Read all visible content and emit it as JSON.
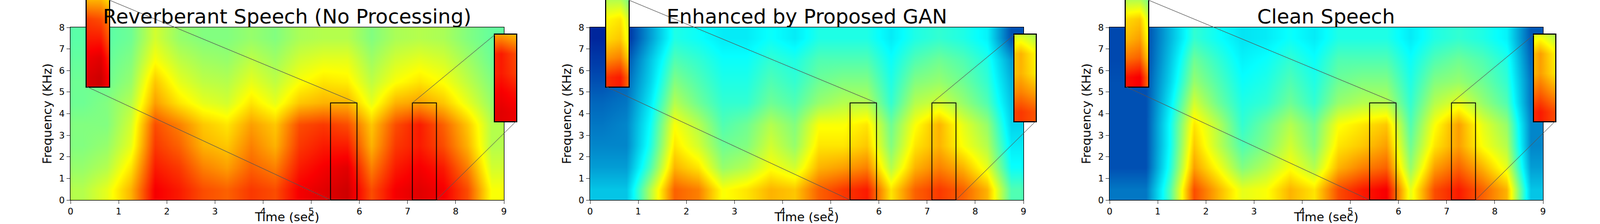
{
  "chart_data": [
    {
      "type": "heatmap",
      "title": "Reverberant Speech (No Processing)",
      "x_label": "Time (sec)",
      "y_label": "Frequency (KHz)",
      "color": "jet",
      "zlim": [
        0,
        1
      ],
      "x": [
        0.25,
        0.75,
        1.25,
        1.75,
        2.25,
        2.75,
        3.25,
        3.75,
        4.25,
        4.75,
        5.25,
        5.75,
        6.25,
        6.75,
        7.25,
        7.75,
        8.25,
        8.75
      ],
      "y": [
        0.5,
        1.5,
        2.5,
        3.5,
        4.5,
        5.5,
        6.5,
        7.5
      ],
      "cells": [
        [
          0.55,
          0.6,
          0.7,
          0.88,
          0.85,
          0.8,
          0.78,
          0.82,
          0.8,
          0.88,
          0.9,
          0.92,
          0.8,
          0.88,
          0.9,
          0.88,
          0.8,
          0.62
        ],
        [
          0.52,
          0.55,
          0.65,
          0.85,
          0.82,
          0.75,
          0.72,
          0.78,
          0.75,
          0.85,
          0.88,
          0.9,
          0.75,
          0.85,
          0.88,
          0.85,
          0.75,
          0.58
        ],
        [
          0.5,
          0.52,
          0.6,
          0.82,
          0.78,
          0.7,
          0.68,
          0.75,
          0.7,
          0.82,
          0.85,
          0.85,
          0.7,
          0.82,
          0.85,
          0.8,
          0.7,
          0.55
        ],
        [
          0.5,
          0.5,
          0.58,
          0.8,
          0.75,
          0.68,
          0.65,
          0.72,
          0.68,
          0.8,
          0.82,
          0.8,
          0.68,
          0.8,
          0.85,
          0.78,
          0.68,
          0.55
        ],
        [
          0.48,
          0.5,
          0.55,
          0.72,
          0.65,
          0.6,
          0.58,
          0.65,
          0.6,
          0.68,
          0.7,
          0.7,
          0.6,
          0.7,
          0.72,
          0.68,
          0.6,
          0.52
        ],
        [
          0.48,
          0.48,
          0.52,
          0.68,
          0.6,
          0.56,
          0.55,
          0.6,
          0.56,
          0.62,
          0.65,
          0.64,
          0.56,
          0.62,
          0.65,
          0.62,
          0.56,
          0.5
        ],
        [
          0.47,
          0.47,
          0.5,
          0.62,
          0.56,
          0.53,
          0.52,
          0.56,
          0.53,
          0.58,
          0.6,
          0.6,
          0.53,
          0.58,
          0.6,
          0.58,
          0.53,
          0.48
        ],
        [
          0.46,
          0.46,
          0.48,
          0.58,
          0.52,
          0.5,
          0.5,
          0.52,
          0.5,
          0.54,
          0.55,
          0.55,
          0.5,
          0.54,
          0.55,
          0.54,
          0.5,
          0.47
        ]
      ],
      "xlim": [
        0,
        9
      ],
      "ylim": [
        0,
        8
      ],
      "xticks": [
        0,
        1,
        2,
        3,
        4,
        5,
        6,
        7,
        8,
        9
      ],
      "yticks": [
        0,
        1,
        2,
        3,
        4,
        5,
        6,
        7,
        8
      ],
      "zoom_boxes": [
        {
          "x": [
            5.4,
            5.95
          ],
          "y": [
            0,
            4.5
          ]
        },
        {
          "x": [
            7.1,
            7.6
          ],
          "y": [
            0,
            4.5
          ]
        }
      ]
    },
    {
      "type": "heatmap",
      "title": "Enhanced by Proposed GAN",
      "x_label": "Time (sec)",
      "y_label": "Frequency (KHz)",
      "color": "jet",
      "zlim": [
        0,
        1
      ],
      "x": [
        0.25,
        0.75,
        1.25,
        1.75,
        2.25,
        2.75,
        3.25,
        3.75,
        4.25,
        4.75,
        5.25,
        5.75,
        6.25,
        6.75,
        7.25,
        7.75,
        8.25,
        8.75
      ],
      "y": [
        0.5,
        1.5,
        2.5,
        3.5,
        4.5,
        5.5,
        6.5,
        7.5
      ],
      "cells": [
        [
          0.3,
          0.3,
          0.55,
          0.78,
          0.75,
          0.62,
          0.65,
          0.7,
          0.68,
          0.78,
          0.82,
          0.85,
          0.65,
          0.78,
          0.82,
          0.78,
          0.7,
          0.45
        ],
        [
          0.25,
          0.25,
          0.45,
          0.7,
          0.65,
          0.52,
          0.55,
          0.62,
          0.58,
          0.7,
          0.72,
          0.75,
          0.55,
          0.7,
          0.75,
          0.7,
          0.6,
          0.38
        ],
        [
          0.22,
          0.22,
          0.4,
          0.65,
          0.58,
          0.48,
          0.5,
          0.58,
          0.52,
          0.65,
          0.65,
          0.68,
          0.5,
          0.65,
          0.7,
          0.62,
          0.55,
          0.35
        ],
        [
          0.2,
          0.22,
          0.38,
          0.62,
          0.55,
          0.45,
          0.48,
          0.55,
          0.5,
          0.62,
          0.62,
          0.65,
          0.48,
          0.62,
          0.7,
          0.6,
          0.52,
          0.32
        ],
        [
          0.18,
          0.2,
          0.35,
          0.55,
          0.48,
          0.42,
          0.42,
          0.48,
          0.45,
          0.52,
          0.55,
          0.55,
          0.42,
          0.55,
          0.58,
          0.52,
          0.45,
          0.3
        ],
        [
          0.15,
          0.18,
          0.32,
          0.5,
          0.45,
          0.4,
          0.4,
          0.45,
          0.42,
          0.48,
          0.5,
          0.5,
          0.4,
          0.5,
          0.52,
          0.48,
          0.42,
          0.28
        ],
        [
          0.12,
          0.15,
          0.3,
          0.45,
          0.42,
          0.38,
          0.38,
          0.42,
          0.4,
          0.45,
          0.45,
          0.45,
          0.38,
          0.45,
          0.48,
          0.45,
          0.4,
          0.25
        ],
        [
          0.08,
          0.1,
          0.25,
          0.4,
          0.38,
          0.35,
          0.35,
          0.38,
          0.35,
          0.4,
          0.4,
          0.4,
          0.35,
          0.4,
          0.42,
          0.4,
          0.36,
          0.15
        ]
      ],
      "xlim": [
        0,
        9
      ],
      "ylim": [
        0,
        8
      ],
      "xticks": [
        0,
        1,
        2,
        3,
        4,
        5,
        6,
        7,
        8,
        9
      ],
      "yticks": [
        0,
        1,
        2,
        3,
        4,
        5,
        6,
        7,
        8
      ],
      "zoom_boxes": [
        {
          "x": [
            5.4,
            5.95
          ],
          "y": [
            0,
            4.5
          ]
        },
        {
          "x": [
            7.1,
            7.6
          ],
          "y": [
            0,
            4.5
          ]
        }
      ]
    },
    {
      "type": "heatmap",
      "title": "Clean Speech",
      "x_label": "Time (sec)",
      "y_label": "Frequency (KHz)",
      "color": "jet",
      "zlim": [
        0,
        1
      ],
      "x": [
        0.25,
        0.75,
        1.25,
        1.75,
        2.25,
        2.75,
        3.25,
        3.75,
        4.25,
        4.75,
        5.25,
        5.75,
        6.25,
        6.75,
        7.25,
        7.75,
        8.25,
        8.75
      ],
      "y": [
        0.5,
        1.5,
        2.5,
        3.5,
        4.5,
        5.5,
        6.5,
        7.5
      ],
      "cells": [
        [
          0.2,
          0.2,
          0.45,
          0.8,
          0.7,
          0.6,
          0.62,
          0.7,
          0.65,
          0.8,
          0.85,
          0.88,
          0.6,
          0.8,
          0.85,
          0.78,
          0.7,
          0.3
        ],
        [
          0.15,
          0.15,
          0.4,
          0.72,
          0.62,
          0.5,
          0.55,
          0.62,
          0.55,
          0.7,
          0.75,
          0.78,
          0.52,
          0.72,
          0.78,
          0.7,
          0.6,
          0.25
        ],
        [
          0.15,
          0.15,
          0.38,
          0.68,
          0.56,
          0.45,
          0.5,
          0.58,
          0.5,
          0.65,
          0.68,
          0.72,
          0.48,
          0.65,
          0.72,
          0.62,
          0.55,
          0.22
        ],
        [
          0.15,
          0.15,
          0.38,
          0.65,
          0.55,
          0.42,
          0.48,
          0.55,
          0.48,
          0.62,
          0.65,
          0.68,
          0.45,
          0.62,
          0.72,
          0.6,
          0.52,
          0.22
        ],
        [
          0.15,
          0.15,
          0.35,
          0.58,
          0.48,
          0.4,
          0.42,
          0.48,
          0.42,
          0.52,
          0.55,
          0.55,
          0.42,
          0.55,
          0.6,
          0.52,
          0.45,
          0.2
        ],
        [
          0.15,
          0.15,
          0.32,
          0.52,
          0.45,
          0.38,
          0.4,
          0.45,
          0.4,
          0.48,
          0.5,
          0.5,
          0.4,
          0.5,
          0.52,
          0.48,
          0.42,
          0.2
        ],
        [
          0.14,
          0.14,
          0.3,
          0.48,
          0.42,
          0.36,
          0.38,
          0.42,
          0.38,
          0.45,
          0.45,
          0.45,
          0.38,
          0.45,
          0.48,
          0.45,
          0.4,
          0.18
        ],
        [
          0.14,
          0.14,
          0.28,
          0.42,
          0.38,
          0.34,
          0.35,
          0.38,
          0.35,
          0.4,
          0.4,
          0.4,
          0.35,
          0.4,
          0.42,
          0.4,
          0.36,
          0.16
        ]
      ],
      "xlim": [
        0,
        9
      ],
      "ylim": [
        0,
        8
      ],
      "xticks": [
        0,
        1,
        2,
        3,
        4,
        5,
        6,
        7,
        8,
        9
      ],
      "yticks": [
        0,
        1,
        2,
        3,
        4,
        5,
        6,
        7,
        8
      ],
      "zoom_boxes": [
        {
          "x": [
            5.4,
            5.95
          ],
          "y": [
            0,
            4.5
          ]
        },
        {
          "x": [
            7.1,
            7.6
          ],
          "y": [
            0,
            4.5
          ]
        }
      ]
    }
  ]
}
